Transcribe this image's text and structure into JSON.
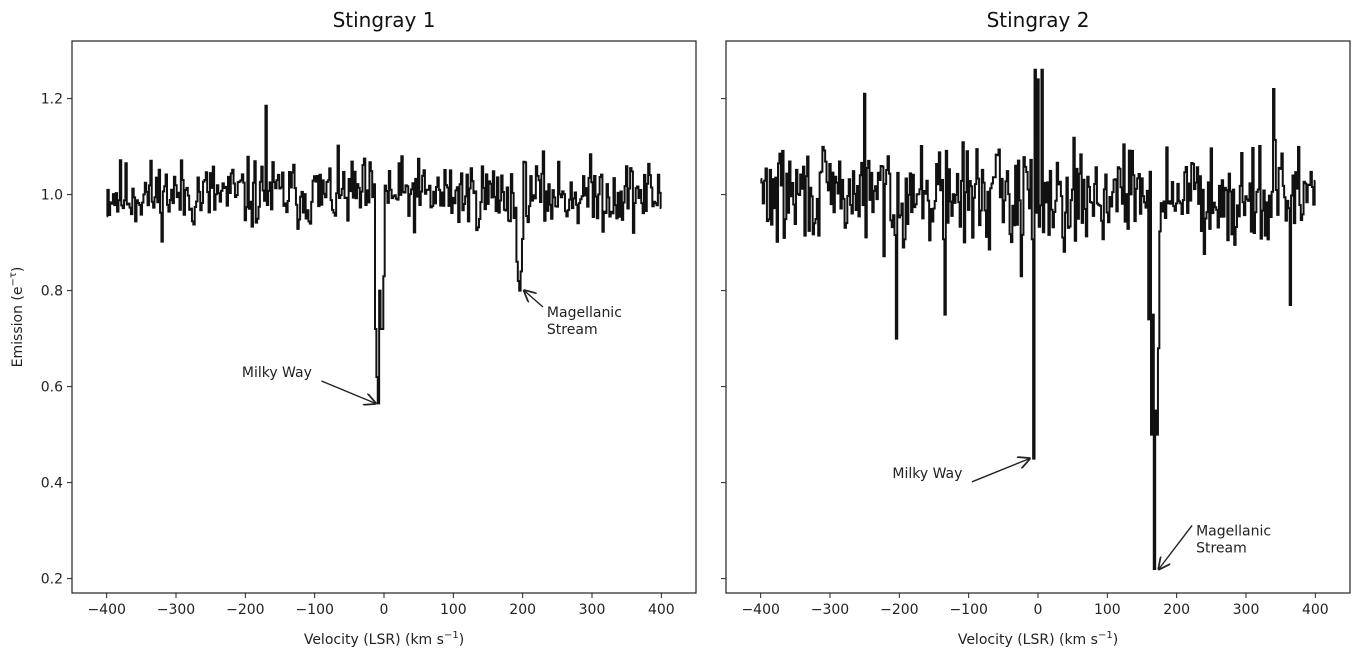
{
  "chart_data": [
    {
      "type": "line",
      "title": "Stingray 1",
      "xlabel": "Velocity (LSR) (km s",
      "xlabel_sup": "−1",
      "xlabel_end": ")",
      "ylabel": "Emission (e",
      "ylabel_sup": "−τ",
      "ylabel_end": ")",
      "xlim": [
        -450,
        450
      ],
      "ylim": [
        0.17,
        1.32
      ],
      "xticks": [
        -400,
        -300,
        -200,
        -100,
        0,
        100,
        200,
        300,
        400
      ],
      "xtick_labels": [
        "−400",
        "−300",
        "−200",
        "−100",
        "0",
        "100",
        "200",
        "300",
        "400"
      ],
      "yticks": [
        0.2,
        0.4,
        0.6,
        0.8,
        1.0,
        1.2
      ],
      "ytick_labels": [
        "0.2",
        "0.4",
        "0.6",
        "0.8",
        "1.0",
        "1.2"
      ],
      "noise": {
        "x_start": -400,
        "x_end": 400,
        "step": 2,
        "baseline": 1.0,
        "amplitude": 0.055,
        "seed": 11
      },
      "features": [
        {
          "x": -12,
          "y": 0.72
        },
        {
          "x": -10,
          "y": 0.62
        },
        {
          "x": -8,
          "y": 0.565
        },
        {
          "x": -6,
          "y": 0.8
        },
        {
          "x": -4,
          "y": 0.72
        },
        {
          "x": -2,
          "y": 0.72
        },
        {
          "x": 0,
          "y": 0.83
        },
        {
          "x": 192,
          "y": 0.86
        },
        {
          "x": 194,
          "y": 0.82
        },
        {
          "x": 196,
          "y": 0.8
        },
        {
          "x": 198,
          "y": 0.84
        },
        {
          "x": -170,
          "y": 1.185
        }
      ],
      "annotations": [
        {
          "lines": [
            "Milky Way"
          ],
          "text_x": -205,
          "text_y": 0.62,
          "arrow_x": -8,
          "arrow_y": 0.565
        },
        {
          "lines": [
            "Magellanic",
            "Stream"
          ],
          "text_x": 235,
          "text_y": 0.745,
          "arrow_x": 198,
          "arrow_y": 0.8
        }
      ]
    },
    {
      "type": "line",
      "title": "Stingray 2",
      "xlabel": "Velocity (LSR) (km s",
      "xlabel_sup": "−1",
      "xlabel_end": ")",
      "xlim": [
        -450,
        450
      ],
      "ylim": [
        0.17,
        1.32
      ],
      "xticks": [
        -400,
        -300,
        -200,
        -100,
        0,
        100,
        200,
        300,
        400
      ],
      "xtick_labels": [
        "−400",
        "−300",
        "−200",
        "−100",
        "0",
        "100",
        "200",
        "300",
        "400"
      ],
      "yticks": [
        0.2,
        0.4,
        0.6,
        0.8,
        1.0,
        1.2
      ],
      "noise": {
        "x_start": -400,
        "x_end": 400,
        "step": 2,
        "baseline": 1.0,
        "amplitude": 0.075,
        "seed": 29
      },
      "features": [
        {
          "x": -6,
          "y": 0.45
        },
        {
          "x": -4,
          "y": 1.26
        },
        {
          "x": 0,
          "y": 1.24
        },
        {
          "x": 6,
          "y": 1.26
        },
        {
          "x": -204,
          "y": 0.7
        },
        {
          "x": -134,
          "y": 0.75
        },
        {
          "x": -24,
          "y": 0.83
        },
        {
          "x": 160,
          "y": 0.74
        },
        {
          "x": 164,
          "y": 0.5
        },
        {
          "x": 166,
          "y": 0.75
        },
        {
          "x": 168,
          "y": 0.22
        },
        {
          "x": 170,
          "y": 0.55
        },
        {
          "x": 172,
          "y": 0.5
        },
        {
          "x": 174,
          "y": 0.68
        },
        {
          "x": 364,
          "y": 0.77
        },
        {
          "x": -250,
          "y": 1.21
        },
        {
          "x": 340,
          "y": 1.22
        }
      ],
      "annotations": [
        {
          "lines": [
            "Milky Way"
          ],
          "text_x": -210,
          "text_y": 0.41,
          "arrow_x": -8,
          "arrow_y": 0.45
        },
        {
          "lines": [
            "Magellanic",
            "Stream"
          ],
          "text_x": 228,
          "text_y": 0.29,
          "arrow_x": 170,
          "arrow_y": 0.22
        }
      ]
    }
  ]
}
